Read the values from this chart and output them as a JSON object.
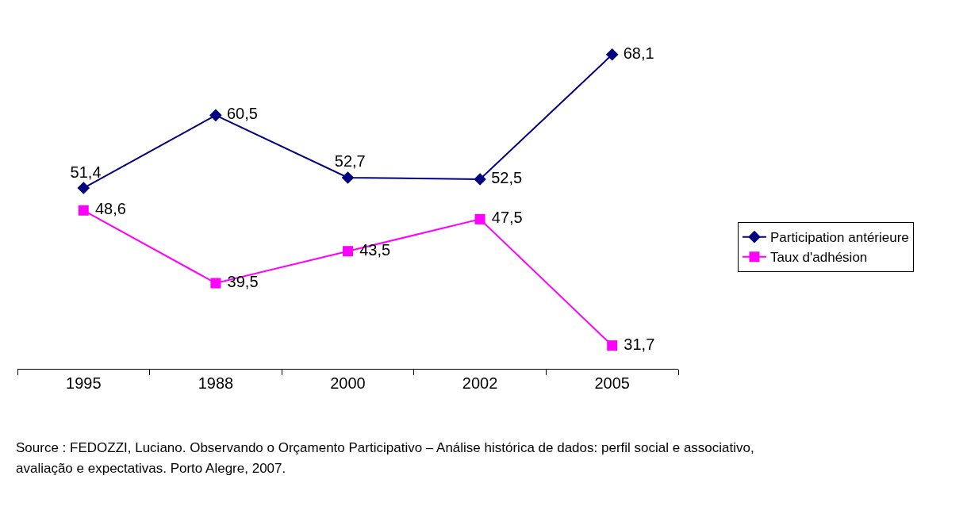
{
  "chart_data": {
    "type": "line",
    "categories": [
      "1995",
      "1988",
      "2000",
      "2002",
      "2005"
    ],
    "series": [
      {
        "name": "Participation antérieure",
        "color": "#000080",
        "marker": "diamond",
        "values": [
          51.4,
          60.5,
          52.7,
          52.5,
          68.1
        ],
        "value_labels": [
          "51,4",
          "60,5",
          "52,7",
          "52,5",
          "68,1"
        ]
      },
      {
        "name": "Taux d'adhésion",
        "color": "#ff00ff",
        "marker": "square",
        "values": [
          48.6,
          39.5,
          43.5,
          47.5,
          31.7
        ],
        "value_labels": [
          "48,6",
          "39,5",
          "43,5",
          "47,5",
          "31,7"
        ]
      }
    ],
    "tick_labels": "x",
    "legend": "right",
    "grid": false,
    "line_style": "solid",
    "annotations": [
      "Source : FEDOZZI, Luciano. Observando o Orçamento Participativo – Análise histórica de dados: perfil social e associativo,",
      "avaliação e expectativas. Porto Alegre, 2007."
    ]
  }
}
